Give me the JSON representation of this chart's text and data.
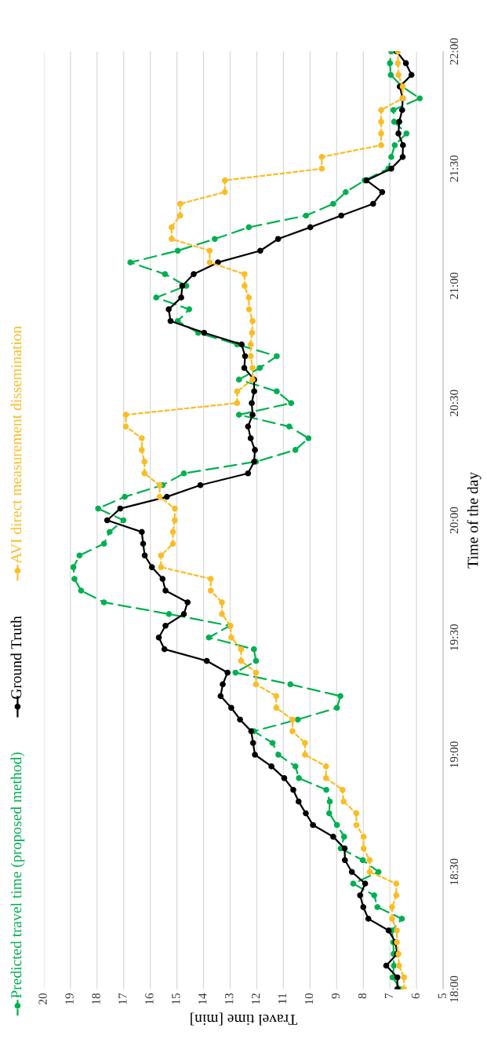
{
  "chart_data": {
    "type": "line",
    "xlabel": "Travel time [min]",
    "ylabel": "Time of the day",
    "xlim": [
      20,
      5
    ],
    "xticks": [
      20,
      19,
      18,
      17,
      16,
      15,
      14,
      13,
      12,
      11,
      10,
      9,
      8,
      7,
      6,
      5
    ],
    "ylim": [
      18,
      22
    ],
    "yticks": [
      {
        "value": 18,
        "label": "18:00"
      },
      {
        "value": 18.5,
        "label": "18:30"
      },
      {
        "value": 19,
        "label": "19:00"
      },
      {
        "value": 19.5,
        "label": "19:30"
      },
      {
        "value": 20,
        "label": "20:00"
      },
      {
        "value": 20.5,
        "label": "20:30"
      },
      {
        "value": 21,
        "label": "21:00"
      },
      {
        "value": 21.5,
        "label": "21:30"
      },
      {
        "value": 22,
        "label": "22:00"
      }
    ],
    "grid": "x",
    "legend": "left",
    "marker": "circle",
    "series": [
      {
        "name": "Predicted travel time (proposed method)",
        "color": "#00b050",
        "line_style": "dashed",
        "x": [
          6.6,
          6.9,
          6.85,
          6.86,
          6.87,
          6.93,
          6.55,
          7.47,
          7.59,
          8.38,
          7.43,
          8.02,
          8.85,
          8.72,
          8.99,
          9.28,
          9.26,
          9.39,
          10.42,
          10.55,
          11.19,
          11.41,
          12.11,
          10.46,
          8.99,
          8.86,
          10.74,
          12.8,
          12.03,
          12.11,
          13.8,
          13.02,
          15.3,
          17.74,
          18.6,
          18.85,
          18.89,
          18.66,
          17.74,
          17.53,
          17.01,
          17.96,
          16.96,
          15.54,
          14.74,
          12.03,
          10.55,
          10.06,
          10.78,
          12.67,
          10.71,
          11.25,
          12.67,
          11.89,
          11.25,
          12.74,
          14.2,
          14.97,
          14.54,
          15.78,
          14.65,
          15.45,
          16.75,
          14.97,
          13.58,
          12.3,
          10.15,
          9.13,
          8.66,
          7.95,
          7.06,
          6.95,
          6.82,
          6.38,
          6.84,
          6.87,
          5.88,
          6.54,
          6.97,
          7.0,
          6.95
        ],
        "values": [
          18.0,
          18.05,
          18.1,
          18.15,
          18.2,
          18.25,
          18.3,
          18.35,
          18.4,
          18.45,
          18.5,
          18.55,
          18.6,
          18.65,
          18.7,
          18.75,
          18.8,
          18.85,
          18.9,
          18.95,
          19.0,
          19.05,
          19.1,
          19.15,
          19.2,
          19.25,
          19.3,
          19.35,
          19.4,
          19.45,
          19.5,
          19.55,
          19.6,
          19.65,
          19.7,
          19.75,
          19.8,
          19.85,
          19.9,
          19.95,
          20.0,
          20.05,
          20.1,
          20.15,
          20.2,
          20.25,
          20.3,
          20.35,
          20.4,
          20.45,
          20.5,
          20.55,
          20.6,
          20.65,
          20.7,
          20.75,
          20.8,
          20.85,
          20.9,
          20.95,
          21.0,
          21.05,
          21.1,
          21.15,
          21.2,
          21.25,
          21.3,
          21.35,
          21.4,
          21.45,
          21.5,
          21.55,
          21.6,
          21.65,
          21.7,
          21.75,
          21.8,
          21.85,
          21.9,
          21.95,
          22.0
        ]
      },
      {
        "name": "Ground Truth",
        "color": "#000000",
        "line_style": "solid",
        "x": [
          6.72,
          6.72,
          7.14,
          6.73,
          6.79,
          7.05,
          7.81,
          8.0,
          8.12,
          7.93,
          8.43,
          8.69,
          8.7,
          9.13,
          9.89,
          10.16,
          10.43,
          10.63,
          10.97,
          11.45,
          12.07,
          12.14,
          12.21,
          12.63,
          12.96,
          13.36,
          13.28,
          13.1,
          13.88,
          15.47,
          15.68,
          15.43,
          14.74,
          14.6,
          15.43,
          15.54,
          15.94,
          16.21,
          16.27,
          16.32,
          17.62,
          17.13,
          15.38,
          14.12,
          12.33,
          12.1,
          12.07,
          12.23,
          12.33,
          12.16,
          12.19,
          12.1,
          12.1,
          12.47,
          12.44,
          12.57,
          13.98,
          15.24,
          15.31,
          14.84,
          14.8,
          14.37,
          13.46,
          11.87,
          11.2,
          9.99,
          8.83,
          7.63,
          7.29,
          7.88,
          6.95,
          6.52,
          6.51,
          6.68,
          6.65,
          6.54,
          6.52,
          6.63,
          6.19,
          6.4,
          6.75
        ],
        "values": [
          18.0,
          18.05,
          18.1,
          18.15,
          18.2,
          18.25,
          18.3,
          18.35,
          18.4,
          18.45,
          18.5,
          18.55,
          18.6,
          18.65,
          18.7,
          18.75,
          18.8,
          18.85,
          18.9,
          18.95,
          19.0,
          19.05,
          19.1,
          19.15,
          19.2,
          19.25,
          19.3,
          19.35,
          19.4,
          19.45,
          19.5,
          19.55,
          19.6,
          19.65,
          19.7,
          19.75,
          19.8,
          19.85,
          19.9,
          19.95,
          20.0,
          20.05,
          20.1,
          20.15,
          20.2,
          20.25,
          20.3,
          20.35,
          20.4,
          20.45,
          20.5,
          20.55,
          20.6,
          20.65,
          20.7,
          20.75,
          20.8,
          20.85,
          20.9,
          20.95,
          21.0,
          21.05,
          21.1,
          21.15,
          21.2,
          21.25,
          21.3,
          21.35,
          21.4,
          21.45,
          21.5,
          21.55,
          21.6,
          21.65,
          21.7,
          21.75,
          21.8,
          21.85,
          21.9,
          21.95,
          22.0
        ]
      },
      {
        "name": "AVI direct measurement dissemination",
        "color": "#fbbc26",
        "line_style": "dotted",
        "x": [
          6.47,
          6.47,
          6.66,
          6.68,
          6.74,
          6.74,
          6.92,
          6.92,
          6.76,
          6.76,
          7.76,
          7.76,
          7.99,
          7.99,
          8.26,
          8.26,
          8.74,
          8.78,
          9.4,
          9.4,
          10.19,
          10.19,
          10.66,
          10.66,
          11.27,
          11.27,
          12.03,
          12.03,
          12.59,
          12.59,
          12.96,
          12.99,
          13.31,
          13.31,
          13.73,
          13.73,
          15.6,
          15.6,
          15.15,
          15.15,
          15.08,
          15.08,
          15.65,
          15.65,
          16.22,
          16.22,
          16.32,
          16.32,
          16.92,
          16.92,
          12.74,
          12.74,
          12.16,
          12.16,
          12.23,
          12.23,
          12.18,
          12.16,
          12.29,
          12.3,
          12.46,
          12.46,
          13.77,
          13.77,
          15.2,
          15.2,
          14.88,
          14.88,
          13.2,
          13.2,
          9.56,
          9.56,
          7.33,
          7.33,
          7.33,
          7.33,
          6.52,
          6.52,
          6.68,
          6.7,
          6.7
        ],
        "values": [
          18.0,
          18.05,
          18.1,
          18.15,
          18.2,
          18.25,
          18.3,
          18.35,
          18.4,
          18.45,
          18.5,
          18.55,
          18.6,
          18.65,
          18.7,
          18.75,
          18.8,
          18.85,
          18.9,
          18.95,
          19.0,
          19.05,
          19.1,
          19.15,
          19.2,
          19.25,
          19.3,
          19.35,
          19.4,
          19.45,
          19.5,
          19.55,
          19.6,
          19.65,
          19.7,
          19.75,
          19.8,
          19.85,
          19.9,
          19.95,
          20.0,
          20.05,
          20.1,
          20.15,
          20.2,
          20.25,
          20.3,
          20.35,
          20.4,
          20.45,
          20.5,
          20.55,
          20.6,
          20.65,
          20.7,
          20.75,
          20.8,
          20.85,
          20.9,
          20.95,
          21.0,
          21.05,
          21.1,
          21.15,
          21.2,
          21.25,
          21.3,
          21.35,
          21.4,
          21.45,
          21.5,
          21.55,
          21.6,
          21.65,
          21.7,
          21.75,
          21.8,
          21.85,
          21.9,
          21.95,
          22.0
        ]
      }
    ]
  }
}
